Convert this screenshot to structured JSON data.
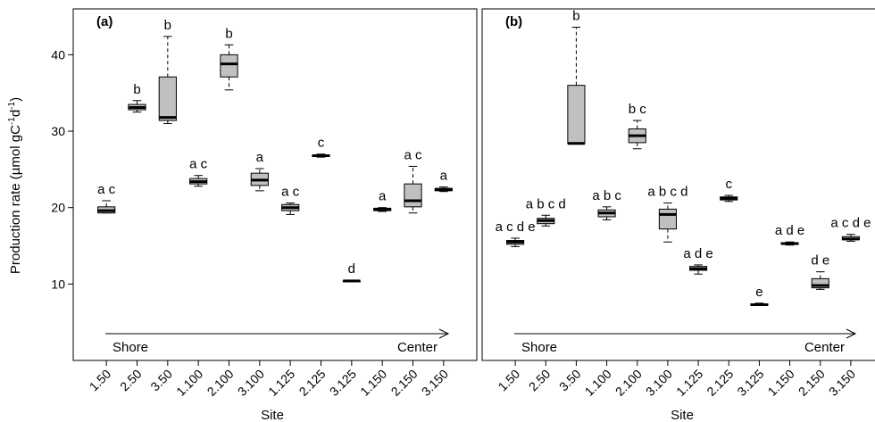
{
  "figure": {
    "ylabel_main": "Production rate (µmol gC",
    "ylabel_sup1": "-1",
    "ylabel_mid": "d",
    "ylabel_sup2": "-1",
    "ylabel_end": ")",
    "xlabel": "Site"
  },
  "chart_data": [
    {
      "type": "boxplot",
      "panel_label": "(a)",
      "categories": [
        "1.50",
        "2.50",
        "3.50",
        "1.100",
        "2.100",
        "3.100",
        "1.125",
        "2.125",
        "3.125",
        "1.150",
        "2.150",
        "3.150"
      ],
      "ylim": [
        0,
        46
      ],
      "yticks": [
        10,
        20,
        30,
        40
      ],
      "boxes": [
        {
          "min": 19.3,
          "q1": 19.3,
          "median": 19.6,
          "q3": 20.1,
          "max": 20.9
        },
        {
          "min": 32.5,
          "q1": 32.8,
          "median": 33.1,
          "q3": 33.5,
          "max": 34.0
        },
        {
          "min": 31.0,
          "q1": 31.4,
          "median": 31.8,
          "q3": 37.1,
          "max": 42.4
        },
        {
          "min": 22.8,
          "q1": 23.1,
          "median": 23.4,
          "q3": 23.8,
          "max": 24.2
        },
        {
          "min": 35.4,
          "q1": 37.1,
          "median": 38.8,
          "q3": 40.0,
          "max": 41.3
        },
        {
          "min": 22.2,
          "q1": 22.9,
          "median": 23.6,
          "q3": 24.5,
          "max": 25.1
        },
        {
          "min": 19.1,
          "q1": 19.6,
          "median": 20.0,
          "q3": 20.4,
          "max": 20.6
        },
        {
          "min": 26.6,
          "q1": 26.7,
          "median": 26.8,
          "q3": 26.9,
          "max": 27.0
        },
        {
          "min": 10.3,
          "q1": 10.3,
          "median": 10.4,
          "q3": 10.4,
          "max": 10.5
        },
        {
          "min": 19.5,
          "q1": 19.6,
          "median": 19.8,
          "q3": 19.9,
          "max": 20.0
        },
        {
          "min": 19.3,
          "q1": 20.1,
          "median": 20.9,
          "q3": 23.1,
          "max": 25.4
        },
        {
          "min": 22.1,
          "q1": 22.2,
          "median": 22.4,
          "q3": 22.5,
          "max": 22.7
        }
      ],
      "letters": [
        "a c",
        "b",
        "b",
        "a c",
        "b",
        "a",
        "a c",
        "c",
        "d",
        "a",
        "a c",
        "a"
      ],
      "arrow_start_label": "Shore",
      "arrow_end_label": "Center"
    },
    {
      "type": "boxplot",
      "panel_label": "(b)",
      "categories": [
        "1.50",
        "2.50",
        "3.50",
        "1.100",
        "2.100",
        "3.100",
        "1.125",
        "2.125",
        "3.125",
        "1.150",
        "2.150",
        "3.150"
      ],
      "ylim": [
        0,
        46
      ],
      "yticks": [
        10,
        20,
        30,
        40
      ],
      "boxes": [
        {
          "min": 14.9,
          "q1": 15.2,
          "median": 15.5,
          "q3": 15.7,
          "max": 16.0
        },
        {
          "min": 17.6,
          "q1": 17.9,
          "median": 18.3,
          "q3": 18.6,
          "max": 19.0
        },
        {
          "min": 28.4,
          "q1": 28.4,
          "median": 28.4,
          "q3": 36.0,
          "max": 43.6
        },
        {
          "min": 18.4,
          "q1": 18.8,
          "median": 19.3,
          "q3": 19.7,
          "max": 20.1
        },
        {
          "min": 27.7,
          "q1": 28.5,
          "median": 29.4,
          "q3": 30.3,
          "max": 31.4
        },
        {
          "min": 15.5,
          "q1": 17.2,
          "median": 19.1,
          "q3": 19.8,
          "max": 20.6
        },
        {
          "min": 11.3,
          "q1": 11.8,
          "median": 12.0,
          "q3": 12.3,
          "max": 12.5
        },
        {
          "min": 20.8,
          "q1": 21.0,
          "median": 21.2,
          "q3": 21.4,
          "max": 21.6
        },
        {
          "min": 7.2,
          "q1": 7.2,
          "median": 7.3,
          "q3": 7.4,
          "max": 7.5
        },
        {
          "min": 15.1,
          "q1": 15.2,
          "median": 15.3,
          "q3": 15.4,
          "max": 15.5
        },
        {
          "min": 9.3,
          "q1": 9.5,
          "median": 9.8,
          "q3": 10.7,
          "max": 11.6
        },
        {
          "min": 15.6,
          "q1": 15.8,
          "median": 15.9,
          "q3": 16.2,
          "max": 16.5
        }
      ],
      "letters": [
        "a c d e",
        "a b c d",
        "b",
        "a b c",
        "b c",
        "a b c d",
        "a d e",
        "c",
        "e",
        "a d e",
        "d e",
        "a c d e"
      ],
      "arrow_start_label": "Shore",
      "arrow_end_label": "Center"
    }
  ]
}
